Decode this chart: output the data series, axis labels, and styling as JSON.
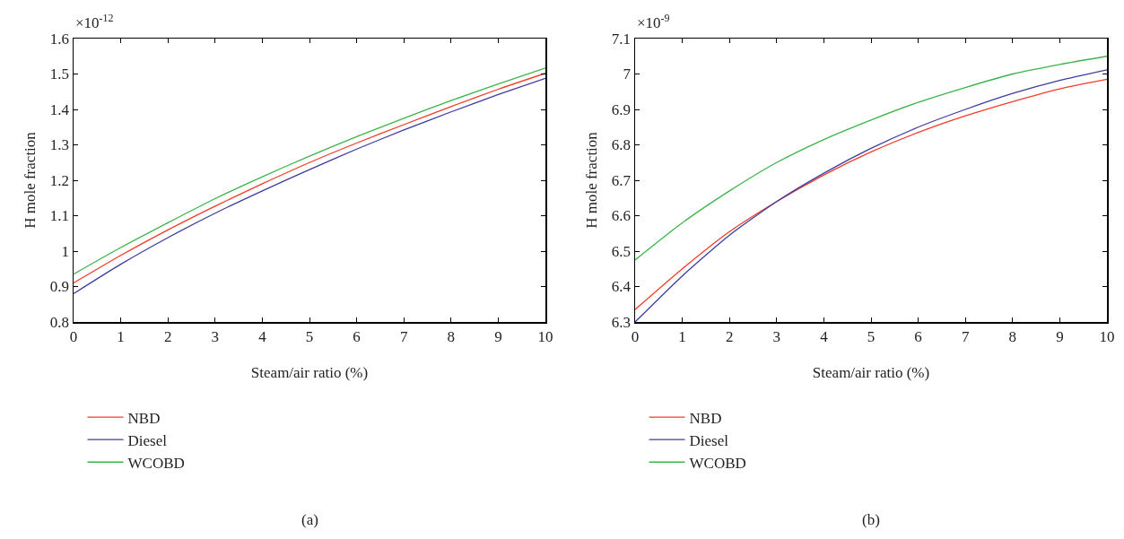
{
  "chart_data": [
    {
      "type": "line",
      "xlabel": "Steam/air ratio (%)",
      "ylabel": "H mole fraction",
      "annotations": [
        "×10$^{-12}$",
        "(a)"
      ],
      "x": [
        0,
        1,
        2,
        3,
        4,
        5,
        6,
        7,
        8,
        9,
        10
      ],
      "xlim": [
        0,
        10
      ],
      "xticks": [
        0,
        1,
        2,
        3,
        4,
        5,
        6,
        7,
        8,
        9,
        10
      ],
      "ylim": [
        0.8,
        1.6
      ],
      "yticks": [
        0.8,
        0.9,
        1,
        1.1,
        1.2,
        1.3,
        1.4,
        1.5,
        1.6
      ],
      "grid": false,
      "legend": "bottom",
      "series": [
        {
          "name": "NBD",
          "color": "#f03c28",
          "values": [
            0.91,
            0.988,
            1.06,
            1.127,
            1.19,
            1.25,
            1.305,
            1.357,
            1.408,
            1.457,
            1.502
          ]
        },
        {
          "name": "Diesel",
          "color": "#3c3ca0",
          "values": [
            0.88,
            0.963,
            1.038,
            1.107,
            1.17,
            1.23,
            1.288,
            1.342,
            1.393,
            1.442,
            1.488
          ]
        },
        {
          "name": "WCOBD",
          "color": "#3cb44b",
          "values": [
            0.935,
            1.01,
            1.08,
            1.148,
            1.21,
            1.268,
            1.323,
            1.375,
            1.425,
            1.472,
            1.517
          ]
        }
      ]
    },
    {
      "type": "line",
      "xlabel": "Steam/air ratio (%)",
      "ylabel": "H mole fraction",
      "annotations": [
        "×10$^{-9}$",
        "(b)"
      ],
      "x": [
        0,
        1,
        2,
        3,
        4,
        5,
        6,
        7,
        8,
        9,
        10
      ],
      "xlim": [
        0,
        10
      ],
      "xticks": [
        0,
        1,
        2,
        3,
        4,
        5,
        6,
        7,
        8,
        9,
        10
      ],
      "ylim": [
        6.3,
        7.1
      ],
      "yticks": [
        6.3,
        6.4,
        6.5,
        6.6,
        6.7,
        6.8,
        6.9,
        7,
        7.1
      ],
      "grid": false,
      "legend": "bottom",
      "series": [
        {
          "name": "NBD",
          "color": "#f03c28",
          "values": [
            6.335,
            6.45,
            6.555,
            6.64,
            6.715,
            6.78,
            6.835,
            6.882,
            6.922,
            6.958,
            6.985
          ]
        },
        {
          "name": "Diesel",
          "color": "#3c3ca0",
          "values": [
            6.3,
            6.43,
            6.545,
            6.64,
            6.72,
            6.79,
            6.85,
            6.9,
            6.945,
            6.982,
            7.012
          ]
        },
        {
          "name": "WCOBD",
          "color": "#3cb44b",
          "values": [
            6.475,
            6.58,
            6.67,
            6.75,
            6.815,
            6.87,
            6.92,
            6.962,
            7.0,
            7.027,
            7.05
          ]
        }
      ]
    }
  ]
}
